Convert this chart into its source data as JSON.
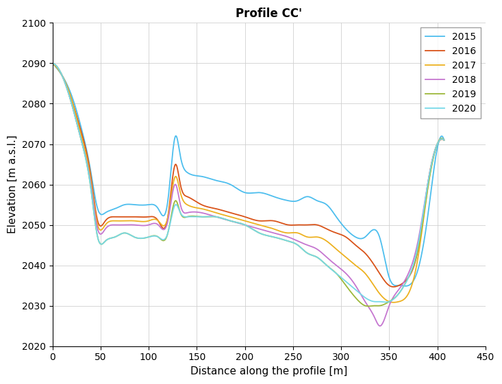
{
  "title": "Profile CC'",
  "xlabel": "Distance along the profile [m]",
  "ylabel": "Elevation [m a.s.l.]",
  "xlim": [
    0,
    450
  ],
  "ylim": [
    2020,
    2100
  ],
  "xticks": [
    0,
    50,
    100,
    150,
    200,
    250,
    300,
    350,
    400,
    450
  ],
  "yticks": [
    2020,
    2030,
    2040,
    2050,
    2060,
    2070,
    2080,
    2090,
    2100
  ],
  "series": [
    {
      "label": "2015",
      "color": "#4DBEEE",
      "linewidth": 1.3,
      "keypoints_x": [
        0,
        10,
        20,
        30,
        40,
        47,
        55,
        65,
        75,
        85,
        100,
        110,
        120,
        128,
        133,
        140,
        155,
        170,
        185,
        200,
        215,
        230,
        245,
        255,
        265,
        275,
        285,
        295,
        305,
        315,
        325,
        340,
        350,
        360,
        370,
        380,
        390,
        400,
        407
      ],
      "keypoints_y": [
        2090,
        2087,
        2082,
        2074,
        2063,
        2054,
        2053,
        2054,
        2055,
        2055,
        2055,
        2054,
        2056,
        2072,
        2067,
        2063,
        2062,
        2061,
        2060,
        2058,
        2058,
        2057,
        2056,
        2056,
        2057,
        2056,
        2055,
        2052,
        2049,
        2047,
        2047,
        2047,
        2037,
        2035,
        2035,
        2039,
        2052,
        2069,
        2071
      ]
    },
    {
      "label": "2016",
      "color": "#D95319",
      "linewidth": 1.3,
      "keypoints_x": [
        0,
        10,
        20,
        30,
        40,
        47,
        55,
        65,
        75,
        85,
        100,
        110,
        120,
        128,
        133,
        140,
        155,
        170,
        185,
        200,
        215,
        230,
        245,
        255,
        265,
        275,
        285,
        295,
        305,
        315,
        325,
        340,
        350,
        360,
        370,
        380,
        390,
        400,
        407
      ],
      "keypoints_y": [
        2090,
        2087,
        2081,
        2073,
        2062,
        2051,
        2051,
        2052,
        2052,
        2052,
        2052,
        2051,
        2052,
        2065,
        2060,
        2057,
        2055,
        2054,
        2053,
        2052,
        2051,
        2051,
        2050,
        2050,
        2050,
        2050,
        2049,
        2048,
        2047,
        2045,
        2043,
        2038,
        2035,
        2035,
        2037,
        2044,
        2060,
        2070,
        2071
      ]
    },
    {
      "label": "2017",
      "color": "#EDB120",
      "linewidth": 1.3,
      "keypoints_x": [
        0,
        10,
        20,
        30,
        40,
        47,
        55,
        65,
        75,
        85,
        100,
        110,
        120,
        128,
        133,
        140,
        155,
        170,
        185,
        200,
        215,
        230,
        245,
        255,
        265,
        275,
        285,
        295,
        305,
        315,
        325,
        340,
        350,
        360,
        370,
        380,
        390,
        400,
        407
      ],
      "keypoints_y": [
        2090,
        2087,
        2081,
        2072,
        2061,
        2050,
        2050,
        2051,
        2051,
        2051,
        2051,
        2051,
        2052,
        2062,
        2058,
        2055,
        2054,
        2053,
        2052,
        2051,
        2050,
        2049,
        2048,
        2048,
        2047,
        2047,
        2046,
        2044,
        2042,
        2040,
        2038,
        2033,
        2031,
        2031,
        2033,
        2042,
        2059,
        2070,
        2071
      ]
    },
    {
      "label": "2018",
      "color": "#C576D0",
      "linewidth": 1.3,
      "keypoints_x": [
        0,
        10,
        20,
        30,
        40,
        47,
        55,
        65,
        75,
        85,
        100,
        110,
        120,
        128,
        133,
        140,
        155,
        170,
        185,
        200,
        215,
        230,
        245,
        255,
        265,
        275,
        285,
        295,
        305,
        315,
        325,
        335,
        340,
        350,
        360,
        370,
        380,
        390,
        400,
        407
      ],
      "keypoints_y": [
        2090,
        2087,
        2080,
        2071,
        2060,
        2049,
        2049,
        2050,
        2050,
        2050,
        2050,
        2050,
        2051,
        2060,
        2055,
        2053,
        2053,
        2052,
        2051,
        2050,
        2049,
        2048,
        2047,
        2046,
        2045,
        2044,
        2042,
        2040,
        2038,
        2035,
        2031,
        2027,
        2025,
        2030,
        2034,
        2038,
        2046,
        2060,
        2070,
        2071
      ]
    },
    {
      "label": "2019",
      "color": "#9DB83A",
      "linewidth": 1.3,
      "keypoints_x": [
        0,
        10,
        20,
        30,
        40,
        47,
        55,
        65,
        75,
        85,
        100,
        110,
        120,
        128,
        133,
        140,
        155,
        170,
        185,
        200,
        215,
        230,
        245,
        255,
        265,
        275,
        285,
        295,
        305,
        315,
        325,
        335,
        340,
        350,
        360,
        370,
        380,
        390,
        400,
        407
      ],
      "keypoints_y": [
        2090,
        2087,
        2080,
        2071,
        2059,
        2047,
        2046,
        2047,
        2048,
        2047,
        2047,
        2047,
        2048,
        2056,
        2053,
        2052,
        2052,
        2052,
        2051,
        2050,
        2048,
        2047,
        2046,
        2045,
        2043,
        2042,
        2040,
        2038,
        2035,
        2032,
        2030,
        2030,
        2030,
        2031,
        2033,
        2037,
        2044,
        2059,
        2070,
        2071
      ]
    },
    {
      "label": "2020",
      "color": "#77D9E8",
      "linewidth": 1.3,
      "keypoints_x": [
        0,
        10,
        20,
        30,
        40,
        47,
        55,
        65,
        75,
        85,
        100,
        110,
        120,
        128,
        133,
        140,
        155,
        170,
        185,
        200,
        215,
        230,
        245,
        255,
        265,
        275,
        285,
        295,
        305,
        315,
        325,
        335,
        340,
        350,
        360,
        370,
        380,
        390,
        400,
        407
      ],
      "keypoints_y": [
        2090,
        2087,
        2080,
        2071,
        2059,
        2047,
        2046,
        2047,
        2048,
        2047,
        2047,
        2047,
        2048,
        2055,
        2053,
        2052,
        2052,
        2052,
        2051,
        2050,
        2048,
        2047,
        2046,
        2045,
        2043,
        2042,
        2040,
        2038,
        2036,
        2034,
        2032,
        2031,
        2031,
        2031,
        2033,
        2037,
        2045,
        2060,
        2070,
        2071
      ]
    }
  ],
  "legend_loc": "upper right",
  "background_color": "#ffffff"
}
